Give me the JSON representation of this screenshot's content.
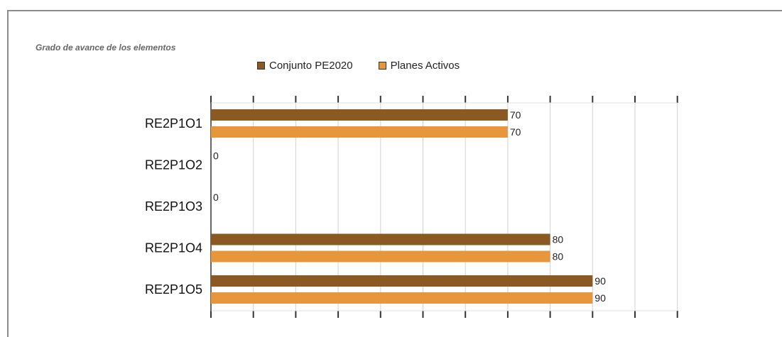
{
  "chart_data": {
    "type": "bar",
    "orientation": "horizontal",
    "title": "Grado de avance de los elementos",
    "categories": [
      "RE2P1O1",
      "RE2P1O2",
      "RE2P1O3",
      "RE2P1O4",
      "RE2P1O5"
    ],
    "series": [
      {
        "name": "Conjunto PE2020",
        "values": [
          70,
          0,
          0,
          80,
          90
        ],
        "color": "#8b5a22"
      },
      {
        "name": "Planes Activos",
        "values": [
          70,
          0,
          0,
          80,
          90
        ],
        "color": "#e8963c"
      }
    ],
    "xlim": [
      0,
      110
    ],
    "grid": true,
    "legend_position": "top"
  }
}
